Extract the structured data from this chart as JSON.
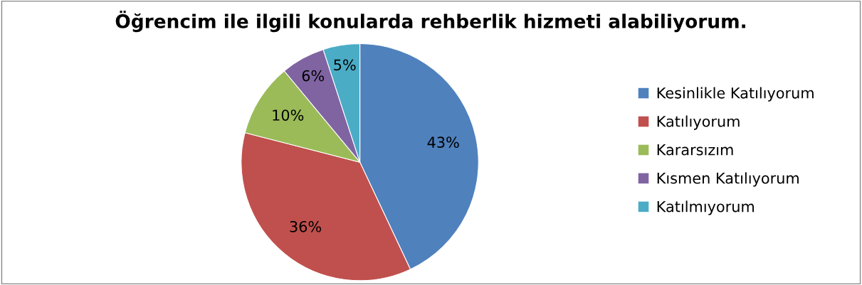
{
  "chart_data": {
    "type": "pie",
    "title": "Öğrencim ile ilgili konularda rehberlik hizmeti alabiliyorum.",
    "categories": [
      "Kesinlikle Katılıyorum",
      "Katılıyorum",
      "Kararsızım",
      "Kısmen Katılıyorum",
      "Katılmıyorum"
    ],
    "values": [
      43,
      36,
      10,
      6,
      5
    ],
    "colors": [
      "#4f81bd",
      "#c0504d",
      "#9bbb59",
      "#8064a2",
      "#4bacc6"
    ],
    "value_labels": [
      "43%",
      "36%",
      "10%",
      "6%",
      "5%"
    ],
    "legend": "right"
  }
}
